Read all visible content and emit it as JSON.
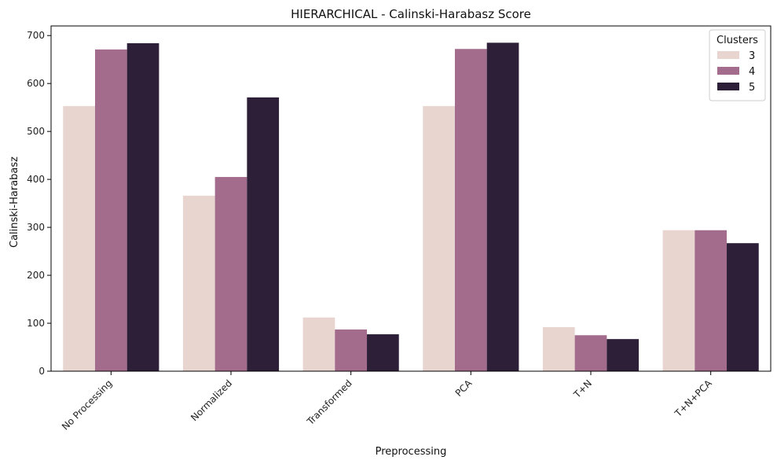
{
  "chart_data": {
    "type": "bar",
    "title": "HIERARCHICAL - Calinski-Harabasz Score",
    "xlabel": "Preprocessing",
    "ylabel": "Calinski-Harabasz",
    "categories": [
      "No Processing",
      "Normalized",
      "Transformed",
      "PCA",
      "T+N",
      "T+N+PCA"
    ],
    "legend": {
      "title": "Clusters",
      "position": "top-right"
    },
    "series": [
      {
        "name": "3",
        "color": "#e8d5d0",
        "values": [
          553,
          366,
          112,
          553,
          92,
          294
        ]
      },
      {
        "name": "4",
        "color": "#a36b8c",
        "values": [
          671,
          405,
          87,
          672,
          75,
          294
        ]
      },
      {
        "name": "5",
        "color": "#2e1f38",
        "values": [
          684,
          571,
          77,
          685,
          67,
          267
        ]
      }
    ],
    "ylim": [
      0,
      720
    ],
    "yticks": [
      0,
      100,
      200,
      300,
      400,
      500,
      600,
      700
    ],
    "grid": false
  }
}
